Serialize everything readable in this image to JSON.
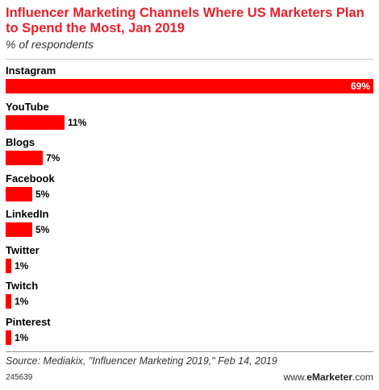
{
  "header": {
    "title": "Influencer Marketing Channels Where US Marketers Plan to Spend the Most, Jan 2019",
    "subtitle": "% of respondents"
  },
  "chart_data": {
    "type": "bar",
    "orientation": "horizontal",
    "categories": [
      "Instagram",
      "YouTube",
      "Blogs",
      "Facebook",
      "LinkedIn",
      "Twitter",
      "Twitch",
      "Pinterest"
    ],
    "values": [
      69,
      11,
      7,
      5,
      5,
      1,
      1,
      1
    ],
    "value_labels": [
      "69%",
      "11%",
      "7%",
      "5%",
      "5%",
      "1%",
      "1%",
      "1%"
    ],
    "unit": "%",
    "xlim": [
      0,
      69
    ],
    "bar_color": "#ff0000",
    "grid": false,
    "legend": "none"
  },
  "footer": {
    "source": "Source: Mediakix, \"Influencer Marketing 2019,\" Feb 14, 2019",
    "chart_id": "245639",
    "brand_prefix": "www.",
    "brand_name": "eMarketer",
    "brand_suffix": ".com"
  }
}
